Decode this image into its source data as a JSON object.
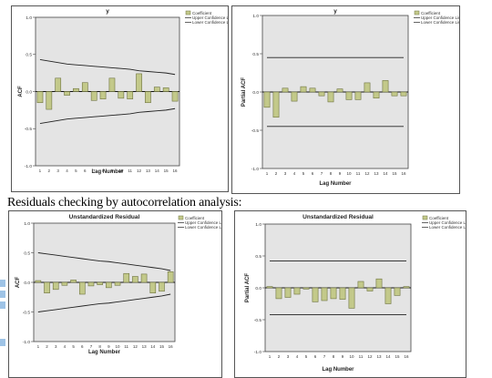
{
  "caption": "Residuals checking by autocorrelation analysis:",
  "colors": {
    "bar_fill": "#c3c98a",
    "bar_stroke": "#6e7340",
    "plot_bg": "#e4e4e4",
    "confidence_line": "#222222"
  },
  "legend": {
    "coef": "Coefficient",
    "upper": "Upper Confidence Limit",
    "lower": "Lower Confidence Limit"
  },
  "chart_data": [
    {
      "type": "bar",
      "title": "y",
      "xlabel": "Lag Number",
      "ylabel": "ACF",
      "ylim": [
        -1.0,
        1.0
      ],
      "yticks": [
        "1.0",
        "0.5",
        "0.0",
        "-0.5",
        "-1.0"
      ],
      "categories": [
        "1",
        "2",
        "3",
        "4",
        "5",
        "6",
        "7",
        "8",
        "9",
        "10",
        "11",
        "12",
        "13",
        "14",
        "15",
        "16"
      ],
      "values": [
        -0.15,
        -0.24,
        0.18,
        -0.05,
        0.04,
        0.12,
        -0.12,
        -0.1,
        0.18,
        -0.09,
        -0.1,
        0.24,
        -0.15,
        0.06,
        0.05,
        -0.13
      ],
      "upper_limit": [
        0.43,
        0.41,
        0.39,
        0.37,
        0.36,
        0.35,
        0.34,
        0.33,
        0.32,
        0.31,
        0.3,
        0.28,
        0.27,
        0.26,
        0.25,
        0.23
      ],
      "lower_limit": [
        -0.43,
        -0.41,
        -0.39,
        -0.37,
        -0.36,
        -0.35,
        -0.34,
        -0.33,
        -0.32,
        -0.31,
        -0.3,
        -0.28,
        -0.27,
        -0.26,
        -0.25,
        -0.23
      ]
    },
    {
      "type": "bar",
      "title": "y",
      "xlabel": "Lag Number",
      "ylabel": "Partial ACF",
      "ylim": [
        -1.0,
        1.0
      ],
      "yticks": [
        "1.0",
        "0.5",
        "0.0",
        "-0.5",
        "-1.0"
      ],
      "categories": [
        "1",
        "2",
        "3",
        "4",
        "5",
        "6",
        "7",
        "8",
        "9",
        "10",
        "11",
        "12",
        "13",
        "14",
        "15",
        "16"
      ],
      "values": [
        -0.2,
        -0.33,
        0.05,
        -0.12,
        0.07,
        0.05,
        -0.05,
        -0.13,
        0.04,
        -0.1,
        -0.1,
        0.12,
        -0.08,
        0.15,
        -0.05,
        -0.05
      ],
      "upper_limit": [
        0.45,
        0.45,
        0.45,
        0.45,
        0.45,
        0.45,
        0.45,
        0.45,
        0.45,
        0.45,
        0.45,
        0.45,
        0.45,
        0.45,
        0.45,
        0.45
      ],
      "lower_limit": [
        -0.45,
        -0.45,
        -0.45,
        -0.45,
        -0.45,
        -0.45,
        -0.45,
        -0.45,
        -0.45,
        -0.45,
        -0.45,
        -0.45,
        -0.45,
        -0.45,
        -0.45,
        -0.45
      ]
    },
    {
      "type": "bar",
      "title": "Unstandardized Residual",
      "xlabel": "Lag Number",
      "ylabel": "ACF",
      "ylim": [
        -1.0,
        1.0
      ],
      "yticks": [
        "1.0",
        "0.5",
        "0.0",
        "-0.5",
        "-1.0"
      ],
      "categories": [
        "1",
        "2",
        "3",
        "4",
        "5",
        "6",
        "7",
        "8",
        "9",
        "10",
        "11",
        "12",
        "13",
        "14",
        "15",
        "16"
      ],
      "values": [
        0.03,
        -0.18,
        -0.12,
        -0.05,
        0.04,
        -0.2,
        -0.06,
        -0.04,
        -0.09,
        -0.05,
        0.15,
        0.1,
        0.14,
        -0.18,
        -0.15,
        0.18
      ],
      "upper_limit": [
        0.5,
        0.48,
        0.46,
        0.44,
        0.42,
        0.4,
        0.38,
        0.36,
        0.35,
        0.33,
        0.31,
        0.29,
        0.27,
        0.25,
        0.23,
        0.2
      ],
      "lower_limit": [
        -0.5,
        -0.48,
        -0.46,
        -0.44,
        -0.42,
        -0.4,
        -0.38,
        -0.36,
        -0.35,
        -0.33,
        -0.31,
        -0.29,
        -0.27,
        -0.25,
        -0.23,
        -0.2
      ]
    },
    {
      "type": "bar",
      "title": "Unstandardized Residual",
      "xlabel": "Lag Number",
      "ylabel": "Partial ACF",
      "ylim": [
        -1.0,
        1.0
      ],
      "yticks": [
        "1.0",
        "0.5",
        "0.0",
        "-0.5",
        "-1.0"
      ],
      "categories": [
        "1",
        "2",
        "3",
        "4",
        "5",
        "6",
        "7",
        "8",
        "9",
        "10",
        "11",
        "12",
        "13",
        "14",
        "15",
        "16"
      ],
      "values": [
        0.02,
        -0.17,
        -0.15,
        -0.1,
        -0.02,
        -0.22,
        -0.2,
        -0.17,
        -0.18,
        -0.32,
        0.1,
        -0.05,
        0.14,
        -0.25,
        -0.12,
        0.02
      ],
      "upper_limit": [
        0.42,
        0.42,
        0.42,
        0.42,
        0.42,
        0.42,
        0.42,
        0.42,
        0.42,
        0.42,
        0.42,
        0.42,
        0.42,
        0.42,
        0.42,
        0.42
      ],
      "lower_limit": [
        -0.42,
        -0.42,
        -0.42,
        -0.42,
        -0.42,
        -0.42,
        -0.42,
        -0.42,
        -0.42,
        -0.42,
        -0.42,
        -0.42,
        -0.42,
        -0.42,
        -0.42,
        -0.42
      ]
    }
  ]
}
